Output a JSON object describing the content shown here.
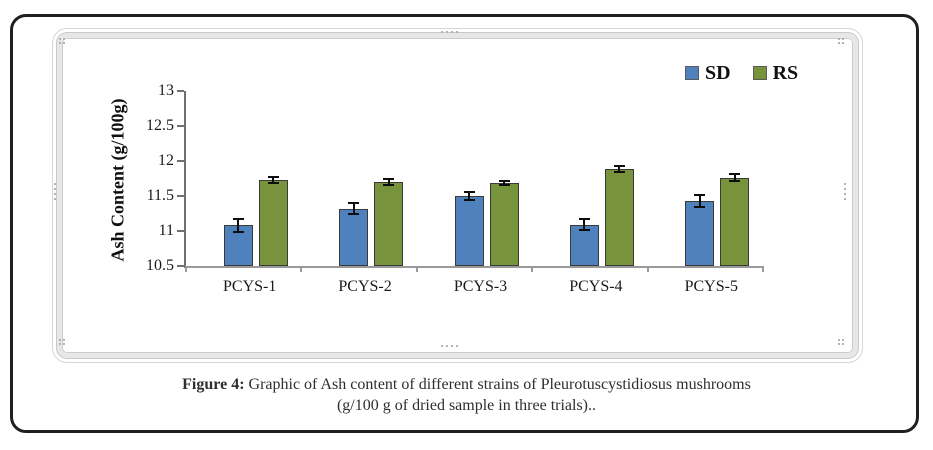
{
  "figure": {
    "caption_prefix": "Figure 4:",
    "caption_line1_rest": " Graphic of Ash content of different strains of Pleurotuscystidiosus mushrooms",
    "caption_line2": "(g/100 g of dried sample in three trials).."
  },
  "chart_data": {
    "type": "bar",
    "title": "",
    "xlabel": "",
    "ylabel": "Ash Content (g/100g)",
    "ylim": [
      10.5,
      13
    ],
    "yticks": [
      10.5,
      11,
      11.5,
      12,
      12.5,
      13
    ],
    "grid": false,
    "error_bars": true,
    "legend_position": "top-right",
    "categories": [
      "PCYS-1",
      "PCYS-2",
      "PCYS-3",
      "PCYS-4",
      "PCYS-5"
    ],
    "series": [
      {
        "name": "SD",
        "color": "#4f81bd",
        "values": [
          11.08,
          11.32,
          11.5,
          11.09,
          11.43
        ],
        "errors": [
          0.09,
          0.08,
          0.06,
          0.08,
          0.08
        ]
      },
      {
        "name": "RS",
        "color": "#77933c",
        "values": [
          11.73,
          11.7,
          11.69,
          11.89,
          11.76
        ],
        "errors": [
          0.04,
          0.04,
          0.03,
          0.04,
          0.05
        ]
      }
    ]
  },
  "colors": {
    "sd_bar": "#4f81bd",
    "rs_bar": "#77933c",
    "axis": "#707070",
    "frame_gray": "#d6d6d6",
    "outer_border": "#1f1f1f",
    "text": "#1a1a1a"
  }
}
